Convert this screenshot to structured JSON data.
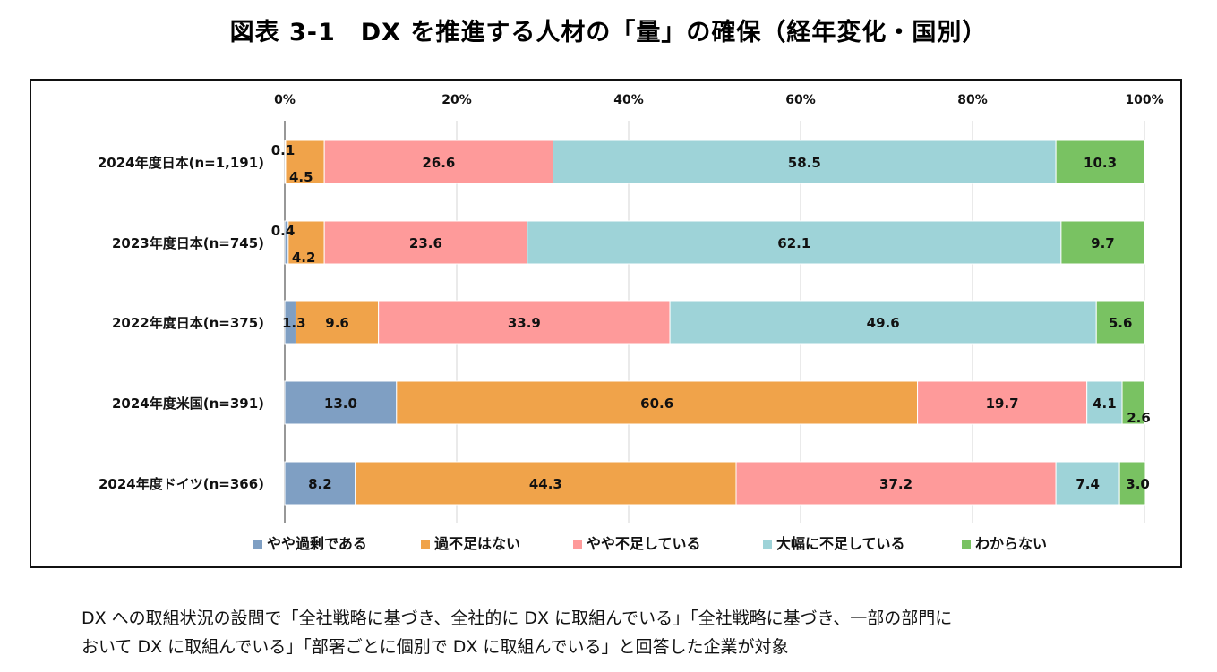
{
  "title": "図表 3-1　DX を推進する人材の「量」の確保（経年変化・国別）",
  "footnote": {
    "line1": "DX への取組状況の設問で「全社戦略に基づき、全社的に DX に取組んでいる」「全社戦略に基づき、一部の部門に",
    "line2": "おいて DX に取組んでいる」「部署ごとに個別で DX に取組んでいる」と回答した企業が対象"
  },
  "chart_data": {
    "type": "bar",
    "orientation": "horizontal",
    "stacked": "percent",
    "title": "図表 3-1　DX を推進する人材の「量」の確保（経年変化・国別）",
    "xlabel": "",
    "ylabel": "",
    "xlim": [
      0,
      100
    ],
    "x_ticks": [
      "0%",
      "20%",
      "40%",
      "60%",
      "80%",
      "100%"
    ],
    "x_tick_values": [
      0,
      20,
      40,
      60,
      80,
      100
    ],
    "grid": true,
    "legend_position": "bottom",
    "categories": [
      "2024年度日本(n=1,191)",
      "2023年度日本(n=745)",
      "2022年度日本(n=375)",
      "2024年度米国(n=391)",
      "2024年度ドイツ(n=366)"
    ],
    "series": [
      {
        "name": "やや過剰である",
        "color": "#7f9fc3",
        "values": [
          0.1,
          0.4,
          1.3,
          13.0,
          8.2
        ],
        "labels": [
          "0.1",
          "0.4",
          "1.3",
          "13.0",
          "8.2"
        ]
      },
      {
        "name": "過不足はない",
        "color": "#f0a34a",
        "values": [
          4.5,
          4.2,
          9.6,
          60.6,
          44.3
        ],
        "labels": [
          "4.5",
          "4.2",
          "9.6",
          "60.6",
          "44.3"
        ]
      },
      {
        "name": "やや不足している",
        "color": "#fe9a9a",
        "values": [
          26.6,
          23.6,
          33.9,
          19.7,
          37.2
        ],
        "labels": [
          "26.6",
          "23.6",
          "33.9",
          "19.7",
          "37.2"
        ]
      },
      {
        "name": "大幅に不足している",
        "color": "#9ed3d8",
        "values": [
          58.5,
          62.1,
          49.6,
          4.1,
          7.4
        ],
        "labels": [
          "58.5",
          "62.1",
          "49.6",
          "4.1",
          "7.4"
        ]
      },
      {
        "name": "わからない",
        "color": "#79c262",
        "values": [
          10.3,
          9.7,
          5.6,
          2.6,
          3.0
        ],
        "labels": [
          "10.3",
          "9.7",
          "5.6",
          "2.6",
          "3.0"
        ]
      }
    ]
  }
}
